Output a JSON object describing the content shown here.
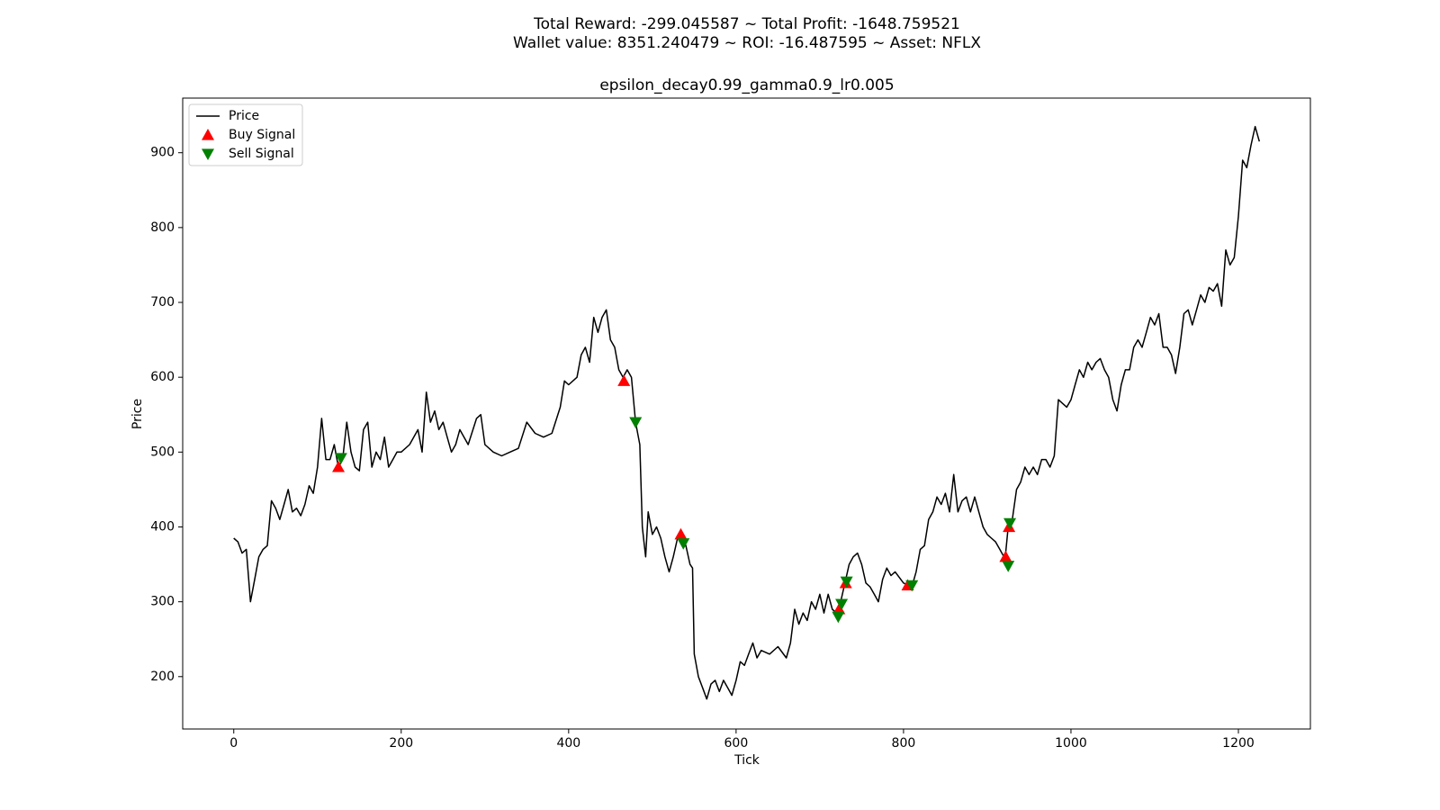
{
  "chart_data": {
    "type": "line",
    "suptitle": [
      "Total Reward: -299.045587 ~ Total Profit: -1648.759521",
      "Wallet value: 8351.240479 ~ ROI: -16.487595 ~ Asset: NFLX"
    ],
    "title": "epsilon_decay0.99_gamma0.9_lr0.005",
    "x_label": "Tick",
    "y_label": "Price",
    "xlim": [
      -61,
      1286
    ],
    "ylim": [
      130,
      973
    ],
    "xticks": [
      0,
      200,
      400,
      600,
      800,
      1000,
      1200
    ],
    "yticks": [
      200,
      300,
      400,
      500,
      600,
      700,
      800,
      900
    ],
    "legend": "upper left",
    "series": [
      {
        "name": "Price",
        "color": "#000000",
        "marker": "line",
        "x": [
          0,
          5,
          10,
          15,
          20,
          25,
          30,
          35,
          40,
          45,
          50,
          55,
          60,
          65,
          70,
          75,
          80,
          85,
          90,
          95,
          100,
          105,
          110,
          115,
          120,
          125,
          130,
          135,
          140,
          145,
          150,
          155,
          160,
          165,
          170,
          175,
          180,
          185,
          190,
          195,
          200,
          210,
          220,
          225,
          230,
          235,
          240,
          245,
          250,
          255,
          260,
          265,
          270,
          280,
          290,
          295,
          300,
          310,
          320,
          330,
          340,
          350,
          360,
          370,
          380,
          390,
          395,
          400,
          410,
          415,
          420,
          425,
          430,
          435,
          440,
          445,
          450,
          455,
          460,
          465,
          470,
          475,
          480,
          485,
          488,
          490,
          492,
          495,
          500,
          505,
          510,
          515,
          520,
          525,
          530,
          535,
          540,
          545,
          548,
          550,
          555,
          560,
          565,
          570,
          575,
          580,
          585,
          590,
          595,
          600,
          605,
          610,
          615,
          620,
          625,
          630,
          640,
          650,
          660,
          665,
          670,
          675,
          680,
          685,
          690,
          695,
          700,
          705,
          710,
          715,
          720,
          725,
          730,
          735,
          740,
          745,
          750,
          755,
          760,
          765,
          770,
          775,
          780,
          785,
          790,
          800,
          810,
          815,
          820,
          825,
          830,
          835,
          840,
          845,
          850,
          855,
          860,
          865,
          870,
          875,
          880,
          885,
          890,
          895,
          900,
          905,
          910,
          915,
          920,
          922,
          925,
          930,
          935,
          940,
          945,
          950,
          955,
          960,
          965,
          970,
          975,
          980,
          985,
          990,
          995,
          1000,
          1005,
          1010,
          1015,
          1020,
          1025,
          1030,
          1035,
          1040,
          1045,
          1050,
          1055,
          1060,
          1065,
          1070,
          1075,
          1080,
          1085,
          1090,
          1095,
          1100,
          1105,
          1110,
          1115,
          1120,
          1125,
          1130,
          1135,
          1140,
          1145,
          1150,
          1155,
          1160,
          1165,
          1170,
          1175,
          1180,
          1185,
          1190,
          1195,
          1200,
          1205,
          1210,
          1215,
          1220,
          1225
        ],
        "values": [
          385,
          380,
          365,
          370,
          300,
          330,
          360,
          370,
          375,
          435,
          425,
          410,
          430,
          450,
          420,
          425,
          415,
          430,
          455,
          445,
          480,
          545,
          490,
          490,
          510,
          480,
          490,
          540,
          500,
          480,
          475,
          530,
          540,
          480,
          500,
          490,
          520,
          480,
          490,
          500,
          500,
          510,
          530,
          500,
          580,
          540,
          555,
          530,
          540,
          520,
          500,
          510,
          530,
          510,
          545,
          550,
          510,
          500,
          495,
          500,
          505,
          540,
          525,
          520,
          525,
          560,
          595,
          590,
          600,
          630,
          640,
          620,
          680,
          660,
          680,
          690,
          650,
          640,
          610,
          600,
          610,
          600,
          540,
          510,
          400,
          380,
          360,
          420,
          390,
          400,
          385,
          360,
          340,
          360,
          385,
          390,
          375,
          350,
          345,
          230,
          200,
          185,
          170,
          190,
          195,
          180,
          195,
          185,
          175,
          195,
          220,
          215,
          230,
          245,
          225,
          235,
          230,
          240,
          225,
          245,
          290,
          270,
          285,
          275,
          300,
          290,
          310,
          285,
          310,
          290,
          285,
          300,
          325,
          350,
          360,
          365,
          350,
          325,
          320,
          310,
          300,
          330,
          345,
          335,
          340,
          325,
          320,
          340,
          370,
          375,
          410,
          420,
          440,
          430,
          445,
          420,
          470,
          420,
          435,
          440,
          420,
          440,
          420,
          400,
          390,
          385,
          380,
          370,
          360,
          365,
          400,
          410,
          450,
          460,
          480,
          470,
          480,
          470,
          490,
          490,
          480,
          495,
          570,
          565,
          560,
          570,
          590,
          610,
          600,
          620,
          610,
          620,
          625,
          610,
          600,
          570,
          555,
          590,
          610,
          610,
          640,
          650,
          640,
          660,
          680,
          670,
          685,
          640,
          640,
          630,
          605,
          640,
          685,
          690,
          670,
          690,
          710,
          700,
          720,
          715,
          725,
          695,
          770,
          750,
          760,
          815,
          890,
          880,
          910,
          935,
          915
        ]
      },
      {
        "name": "Buy Signal",
        "color": "#ff0000",
        "marker": "triangle-up",
        "x": [
          125,
          466,
          534,
          723,
          731,
          805,
          922,
          926
        ],
        "values": [
          480,
          595,
          390,
          290,
          325,
          322,
          360,
          400
        ]
      },
      {
        "name": "Sell Signal",
        "color": "#008000",
        "marker": "triangle-down",
        "x": [
          128,
          480,
          537,
          722,
          726,
          732,
          810,
          925,
          927
        ],
        "values": [
          492,
          540,
          378,
          280,
          297,
          327,
          322,
          348,
          405
        ]
      }
    ]
  }
}
